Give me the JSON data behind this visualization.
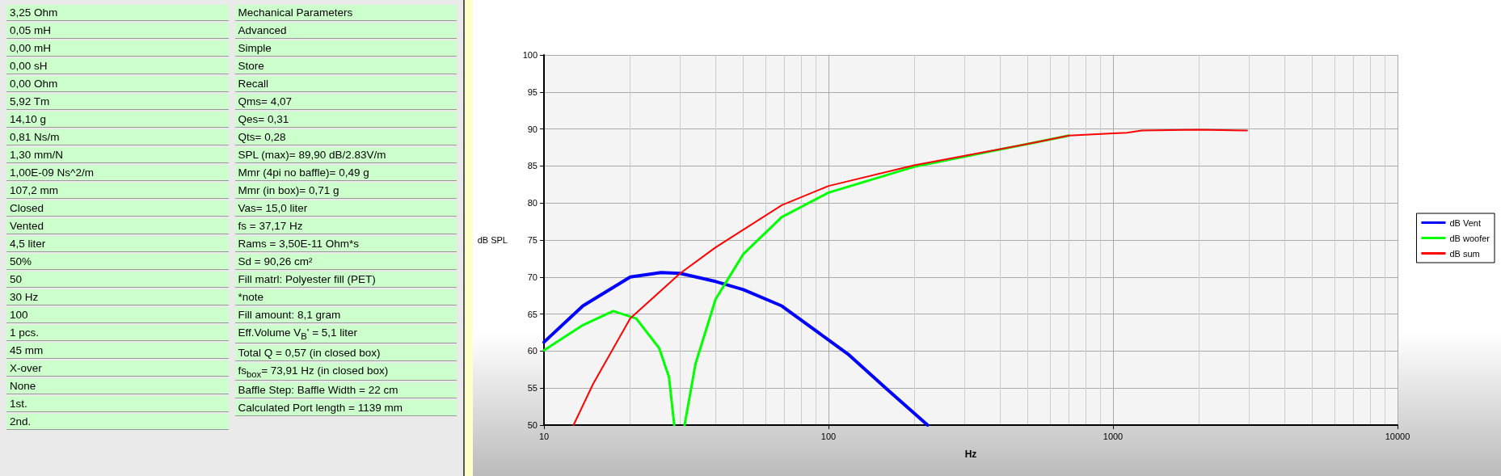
{
  "chart_data": [
    {
      "type": "other",
      "annotations": [
        "3,25 Ohm",
        "0,05 mH",
        "0,00 mH",
        "0,00 sH",
        "0,00 Ohm",
        "5,92 Tm",
        "14,10 g",
        "0,81 Ns/m",
        "1,30 mm/N",
        "1,00E-09 Ns^2/m",
        "107,2 mm",
        "Closed",
        "Vented",
        "4,5 liter",
        "50%",
        "50",
        "30 Hz",
        "100",
        "1 pcs.",
        "45 mm",
        "X-over",
        "None",
        "1st.",
        "2nd.",
        "Mechanical Parameters",
        "Advanced",
        "Simple",
        "Store",
        "Recall",
        "Qms= 4,07",
        "Qes= 0,31",
        "Qts= 0,28",
        "SPL (max)= 89,90 dB/2.83V/m",
        "Mmr (4pi no baffle)= 0,49 g",
        "Mmr (in box)= 0,71 g",
        "Vas= 15,0 liter",
        "fs = 37,17 Hz",
        "Rams = 3,50E-11 Ohm*s",
        "Sd = 90,26 cm²",
        "Fill matrl: Polyester fill (PET)",
        "*note",
        "Fill amount: 8,1 gram",
        "Eff.Volume V$_{B}$' = 5,1 liter",
        "Total Q = 0,57 (in closed box)",
        "fs$_{box}$= 73,91 Hz (in closed box)",
        "Baffle Step: Baffle Width = 22 cm",
        "Calculated Port length = 1139 mm"
      ]
    },
    {
      "type": "line",
      "xlabel": "Hz",
      "ylabel": "dB SPL",
      "log": "x",
      "xlim": [
        10,
        10000
      ],
      "xticks": [
        10,
        100,
        1000,
        10000
      ],
      "ylim": [
        50,
        100
      ],
      "yticks": [
        50,
        55,
        60,
        65,
        70,
        75,
        80,
        85,
        90,
        95,
        100
      ],
      "grid": true,
      "legend": "right",
      "marker": "none",
      "line_style": "solid",
      "series": [
        {
          "name": "dB Vent",
          "color": "#0000ff",
          "x": [
            10,
            13.7,
            20.1,
            25.8,
            30.1,
            40.1,
            50.2,
            68.5,
            100,
            117,
            161,
            223
          ],
          "values": [
            61.2,
            66.1,
            70.0,
            70.6,
            70.5,
            69.4,
            68.3,
            66.1,
            61.5,
            59.6,
            54.8,
            50
          ]
        },
        {
          "name": "dB woofer",
          "color": "#00ff00",
          "x": [
            10,
            13.7,
            17.5,
            21.1,
            25.4,
            27.5,
            28.7,
            30,
            31.2,
            34.1,
            40.1,
            50.2,
            68.5,
            100,
            200,
            537,
            700
          ],
          "values": [
            60.1,
            63.5,
            65.4,
            64.4,
            60.4,
            56.5,
            50,
            null,
            50,
            58.3,
            67.0,
            73.1,
            78.1,
            81.4,
            84.9,
            88.2,
            89.1
          ]
        },
        {
          "name": "dB sum",
          "color": "#ff0000",
          "x": [
            12.7,
            14.9,
            20.1,
            30.1,
            40.1,
            68.5,
            100,
            200,
            537,
            700,
            1000,
            1120,
            1260,
            2000,
            2960
          ],
          "values": [
            50,
            55.6,
            64.4,
            70.5,
            74.0,
            79.7,
            82.3,
            85.1,
            88.2,
            89.1,
            89.4,
            89.5,
            89.8,
            89.9,
            89.8
          ]
        }
      ]
    }
  ]
}
